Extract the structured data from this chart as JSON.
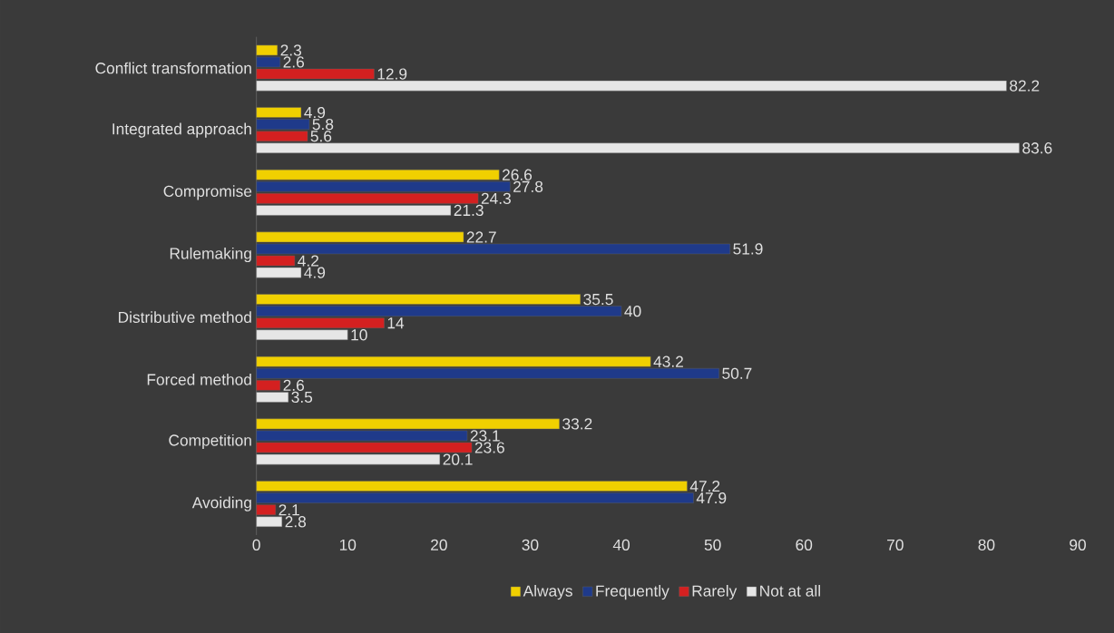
{
  "chart_data": {
    "type": "bar",
    "orientation": "horizontal",
    "categories": [
      "Conflict transformation",
      "Integrated approach",
      "Compromise",
      "Rulemaking",
      "Distributive method",
      "Forced method",
      "Competition",
      "Avoiding"
    ],
    "series": [
      {
        "name": "Always",
        "color": "#f0d000",
        "values": [
          2.3,
          4.9,
          26.6,
          22.7,
          35.5,
          43.2,
          33.2,
          47.2
        ]
      },
      {
        "name": "Frequently",
        "color": "#1f3a8a",
        "values": [
          2.6,
          5.8,
          27.8,
          51.9,
          40,
          50.7,
          23.1,
          47.9
        ]
      },
      {
        "name": "Rarely",
        "color": "#d42020",
        "values": [
          12.9,
          5.6,
          24.3,
          4.2,
          14,
          2.6,
          23.6,
          2.1
        ]
      },
      {
        "name": "Not at all",
        "color": "#e6e6e6",
        "values": [
          82.2,
          83.6,
          21.3,
          4.9,
          10,
          3.5,
          20.1,
          2.8
        ]
      }
    ],
    "xlim": [
      0,
      90
    ],
    "xticks": [
      0,
      10,
      20,
      30,
      40,
      50,
      60,
      70,
      80,
      90
    ],
    "data_labels": true,
    "legend": "bottom",
    "grid": false
  }
}
